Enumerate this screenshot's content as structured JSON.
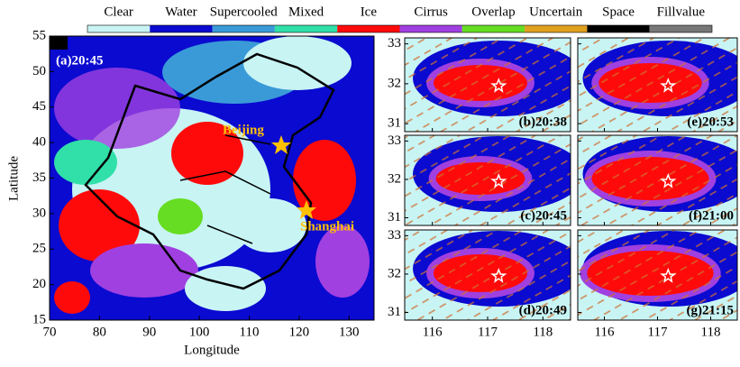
{
  "colorbar": {
    "categories": [
      "Clear",
      "Water",
      "Supercooled",
      "Mixed",
      "Ice",
      "Cirrus",
      "Overlap",
      "Uncertain",
      "Space",
      "Fillvalue"
    ],
    "colors": [
      "#c8f4f4",
      "#0a0ad0",
      "#3a9ad8",
      "#30e0a8",
      "#ff0a0a",
      "#a040e0",
      "#66dd22",
      "#e0a020",
      "#000000",
      "#777777"
    ]
  },
  "main_map": {
    "label": "(a)20:45",
    "xlabel": "Longitude",
    "ylabel": "Latitude",
    "xlim": [
      70,
      135
    ],
    "ylim": [
      15,
      55
    ],
    "xticks": [
      70,
      80,
      90,
      100,
      110,
      120,
      130
    ],
    "yticks": [
      15,
      20,
      25,
      30,
      35,
      40,
      45,
      50,
      55
    ],
    "cities": [
      "Beijing",
      "Shanghai"
    ]
  },
  "zoom_panels": {
    "xlim": [
      115.5,
      118.5
    ],
    "ylim": [
      30.8,
      33.15
    ],
    "xticks": [
      116,
      117,
      118
    ],
    "yticks": [
      31,
      32,
      33
    ],
    "labels": [
      "(b)20:38",
      "(c)20:45",
      "(d)20:49",
      "(e)20:53",
      "(f)21:00",
      "(g)21:15"
    ]
  }
}
